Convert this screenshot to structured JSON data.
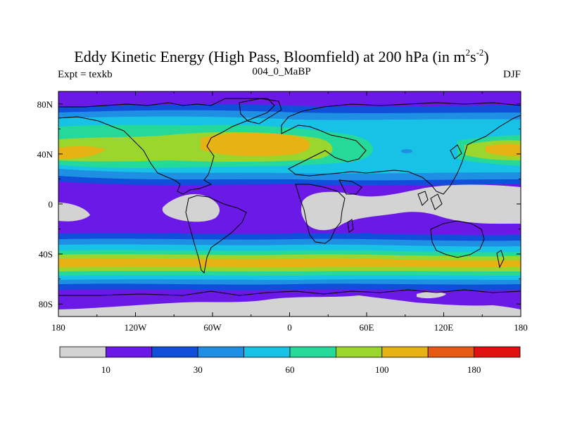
{
  "title": {
    "main": "Eddy Kinetic Energy (High Pass, Bloomfield) at 200 hPa (in m",
    "sup1": "2",
    "mid": "s",
    "sup2": "-2",
    "end": ")"
  },
  "subtitle": {
    "left": "Expt = texkb",
    "center": "004_0_MaBP",
    "right": "DJF"
  },
  "axes": {
    "lat_ticks": [
      "80N",
      "40N",
      "0",
      "40S",
      "80S"
    ],
    "lon_ticks": [
      "180",
      "120W",
      "60W",
      "0",
      "60E",
      "120E",
      "180"
    ]
  },
  "colorbar": {
    "colors": [
      "#d3d3d3",
      "#6a19e6",
      "#0f4fd9",
      "#1e8fe2",
      "#18c1e6",
      "#25d99a",
      "#9ad62e",
      "#e6b214",
      "#e65a14",
      "#e01010"
    ],
    "labels": [
      "10",
      "30",
      "60",
      "100",
      "180"
    ]
  },
  "colors": {
    "lightgray": "#d3d3d3",
    "violet": "#6a19e6",
    "blue": "#0f4fd9",
    "midblue": "#1e8fe2",
    "cyan": "#18c1e6",
    "green": "#25d99a",
    "yellowgreen": "#9ad62e",
    "orange": "#e6b214"
  }
}
